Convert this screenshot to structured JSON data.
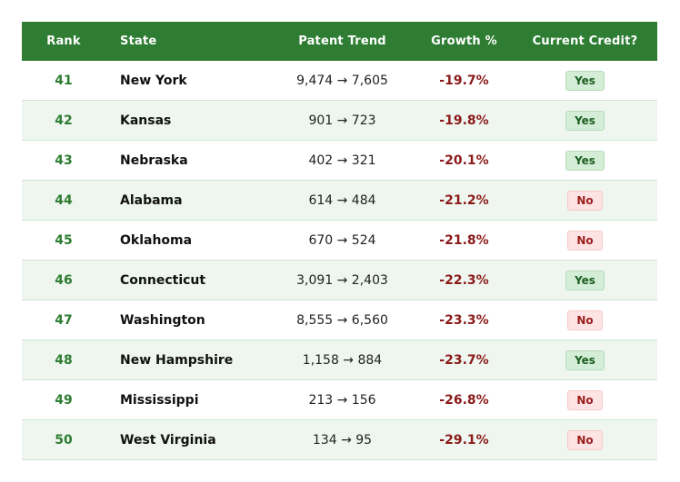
{
  "table": {
    "headers": {
      "rank": "Rank",
      "state": "State",
      "trend": "Patent Trend",
      "growth": "Growth %",
      "credit": "Current Credit?"
    },
    "rows": [
      {
        "rank": "41",
        "state": "New York",
        "trend": "9,474 → 7,605",
        "growth": "-19.7%",
        "credit": "Yes"
      },
      {
        "rank": "42",
        "state": "Kansas",
        "trend": "901 → 723",
        "growth": "-19.8%",
        "credit": "Yes"
      },
      {
        "rank": "43",
        "state": "Nebraska",
        "trend": "402 → 321",
        "growth": "-20.1%",
        "credit": "Yes"
      },
      {
        "rank": "44",
        "state": "Alabama",
        "trend": "614 → 484",
        "growth": "-21.2%",
        "credit": "No"
      },
      {
        "rank": "45",
        "state": "Oklahoma",
        "trend": "670 → 524",
        "growth": "-21.8%",
        "credit": "No"
      },
      {
        "rank": "46",
        "state": "Connecticut",
        "trend": "3,091 → 2,403",
        "growth": "-22.3%",
        "credit": "Yes"
      },
      {
        "rank": "47",
        "state": "Washington",
        "trend": "8,555 → 6,560",
        "growth": "-23.3%",
        "credit": "No"
      },
      {
        "rank": "48",
        "state": "New Hampshire",
        "trend": "1,158 → 884",
        "growth": "-23.7%",
        "credit": "Yes"
      },
      {
        "rank": "49",
        "state": "Mississippi",
        "trend": "213 → 156",
        "growth": "-26.8%",
        "credit": "No"
      },
      {
        "rank": "50",
        "state": "West Virginia",
        "trend": "134 → 95",
        "growth": "-29.1%",
        "credit": "No"
      }
    ]
  },
  "colors": {
    "header_bg": "#2e7d32",
    "rank_text": "#2e7d32",
    "growth_negative": "#8b1a1a",
    "yes_badge_bg": "#d4edd6",
    "no_badge_bg": "#fde3e3",
    "alt_row_bg": "#eef6ef"
  }
}
